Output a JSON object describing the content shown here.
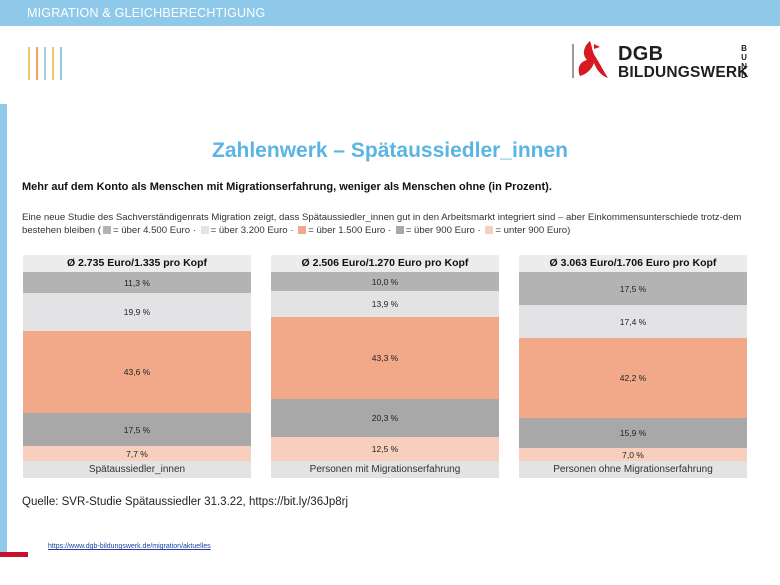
{
  "header": {
    "section_label": "MIGRATION & GLEICHBERECHTIGUNG"
  },
  "logo": {
    "line1": "DGB",
    "line2": "BILDUNGSWERK",
    "line3": "BUND"
  },
  "slide": {
    "title": "Zahlenwerk – Spätaussiedler_innen",
    "subtitle": "Mehr auf dem Konto als Menschen mit Migrationserfahrung, weniger als Menschen ohne (in Prozent).",
    "description_intro": "Eine neue Studie des Sachverständigenrats Migration zeigt, dass Spätaussiedler_innen gut in den Arbeitsmarkt integriert sind – aber Einkommensunterschiede trotz-dem bestehen bleiben (",
    "description_end": ")",
    "legend": [
      {
        "label": "= über 4.500 Euro",
        "color": "#b3b3b3"
      },
      {
        "label": "= über 3.200 Euro",
        "color": "#e3e3e5"
      },
      {
        "label": "= über 1.500 Euro",
        "color": "#f2a98a"
      },
      {
        "label": "= über 900 Euro",
        "color": "#a8a8a8"
      },
      {
        "label": "= unter 900 Euro",
        "color": "#f8cfbd"
      }
    ],
    "source": "Quelle:  SVR-Studie Spätaussiedler 31.3.22, https://bit.ly/36Jp8rj",
    "url": "https://www.dgb-bildungswerk.de/migration/aktuelles"
  },
  "chart_data": [
    {
      "type": "bar",
      "stacked": true,
      "header": "Ø 2.735 Euro/1.335 pro Kopf",
      "category": "Spätaussiedler_innen",
      "segments": [
        {
          "legend": "über 4.500 Euro",
          "label": "11,3 %",
          "value": 11.3,
          "color": "#b3b3b3"
        },
        {
          "legend": "über 3.200 Euro",
          "label": "19,9 %",
          "value": 19.9,
          "color": "#e3e3e5"
        },
        {
          "legend": "über 1.500 Euro",
          "label": "43,6 %",
          "value": 43.6,
          "color": "#f2a98a"
        },
        {
          "legend": "über 900 Euro",
          "label": "17,5 %",
          "value": 17.5,
          "color": "#a8a8a8"
        },
        {
          "legend": "unter 900 Euro",
          "label": "7,7 %",
          "value": 7.7,
          "color": "#f8cfbd"
        }
      ]
    },
    {
      "type": "bar",
      "stacked": true,
      "header": "Ø 2.506 Euro/1.270 Euro pro Kopf",
      "category": "Personen mit Migrationserfahrung",
      "segments": [
        {
          "legend": "über 4.500 Euro",
          "label": "10,0 %",
          "value": 10.0,
          "color": "#b3b3b3"
        },
        {
          "legend": "über 3.200 Euro",
          "label": "13,9 %",
          "value": 13.9,
          "color": "#e3e3e5"
        },
        {
          "legend": "über 1.500 Euro",
          "label": "43,3 %",
          "value": 43.3,
          "color": "#f2a98a"
        },
        {
          "legend": "über 900 Euro",
          "label": "20,3 %",
          "value": 20.3,
          "color": "#a8a8a8"
        },
        {
          "legend": "unter 900 Euro",
          "label": "12,5 %",
          "value": 12.5,
          "color": "#f8cfbd"
        }
      ]
    },
    {
      "type": "bar",
      "stacked": true,
      "header": "Ø 3.063 Euro/1.706 Euro pro Kopf",
      "category": "Personen ohne Migrationserfahrung",
      "segments": [
        {
          "legend": "über 4.500 Euro",
          "label": "17,5 %",
          "value": 17.5,
          "color": "#b3b3b3"
        },
        {
          "legend": "über 3.200 Euro",
          "label": "17,4 %",
          "value": 17.4,
          "color": "#e3e3e5"
        },
        {
          "legend": "über 1.500 Euro",
          "label": "42,2 %",
          "value": 42.2,
          "color": "#f2a98a"
        },
        {
          "legend": "über 900 Euro",
          "label": "15,9 %",
          "value": 15.9,
          "color": "#a8a8a8"
        },
        {
          "legend": "unter 900 Euro",
          "label": "7,0 %",
          "value": 7.0,
          "color": "#f8cfbd"
        }
      ]
    }
  ]
}
